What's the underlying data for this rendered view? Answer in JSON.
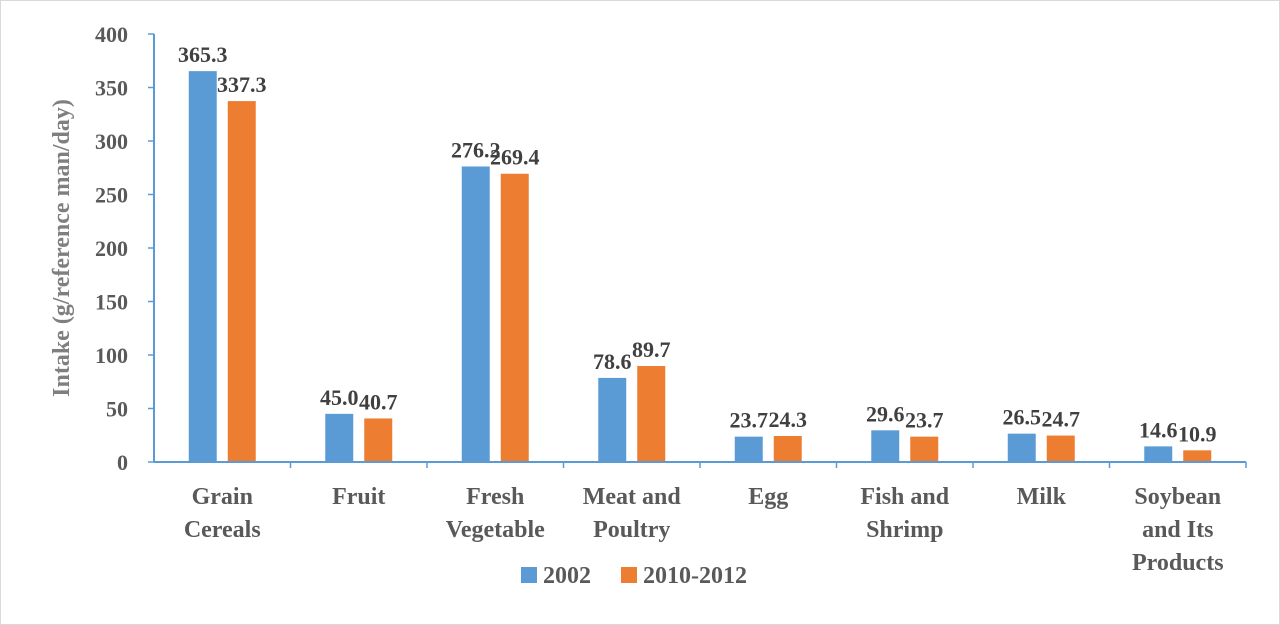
{
  "chart_data": {
    "type": "bar",
    "ylabel": "Intake (g/reference man/day)",
    "xlabel": "",
    "ylim": [
      0,
      400
    ],
    "yticks": [
      0,
      50,
      100,
      150,
      200,
      250,
      300,
      350,
      400
    ],
    "grid": false,
    "legend_position": "bottom",
    "categories": [
      [
        "Grain",
        "Cereals"
      ],
      [
        "Fruit"
      ],
      [
        "Fresh",
        "Vegetable"
      ],
      [
        "Meat and",
        "Poultry"
      ],
      [
        "Egg"
      ],
      [
        "Fish and",
        "Shrimp"
      ],
      [
        "Milk"
      ],
      [
        "Soybean",
        "and Its",
        "Products"
      ]
    ],
    "series": [
      {
        "name": "2002",
        "color": "#5b9bd5",
        "values": [
          365.3,
          45.0,
          276.2,
          78.6,
          23.7,
          29.6,
          26.5,
          14.6
        ],
        "labels": [
          "365.3",
          "45.0",
          "276.2",
          "78.6",
          "23.7",
          "29.6",
          "26.5",
          "14.6"
        ]
      },
      {
        "name": "2010-2012",
        "color": "#ed7d31",
        "values": [
          337.3,
          40.7,
          269.4,
          89.7,
          24.3,
          23.7,
          24.7,
          10.9
        ],
        "labels": [
          "337.3",
          "40.7",
          "269.4",
          "89.7",
          "24.3",
          "23.7",
          "24.7",
          "10.9"
        ]
      }
    ],
    "axis_color": "#5b9bd5"
  }
}
